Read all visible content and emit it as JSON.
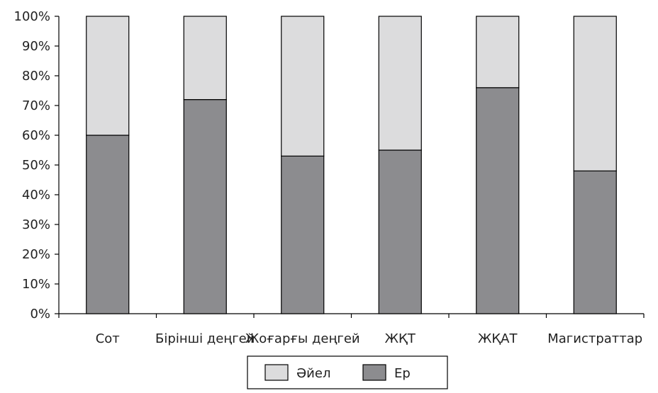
{
  "chart_data": {
    "type": "bar",
    "stacked": true,
    "categories": [
      "Сот",
      "Бірінші деңгей",
      "Жоғарғы деңгей",
      "ЖҚТ",
      "ЖҚАТ",
      "Магистраттар"
    ],
    "series": [
      {
        "name": "Ер",
        "values": [
          60,
          72,
          53,
          55,
          76,
          48
        ],
        "color": "#8c8c8f"
      },
      {
        "name": "Әйел",
        "values": [
          40,
          28,
          47,
          45,
          24,
          52
        ],
        "color": "#dcdcdd"
      }
    ],
    "y_ticks": [
      "0%",
      "10%",
      "20%",
      "30%",
      "40%",
      "50%",
      "60%",
      "70%",
      "80%",
      "90%",
      "100%"
    ],
    "ylim": [
      0,
      100
    ],
    "grid": false,
    "legend": {
      "position": "bottom",
      "order": [
        "Әйел",
        "Ер"
      ]
    }
  }
}
